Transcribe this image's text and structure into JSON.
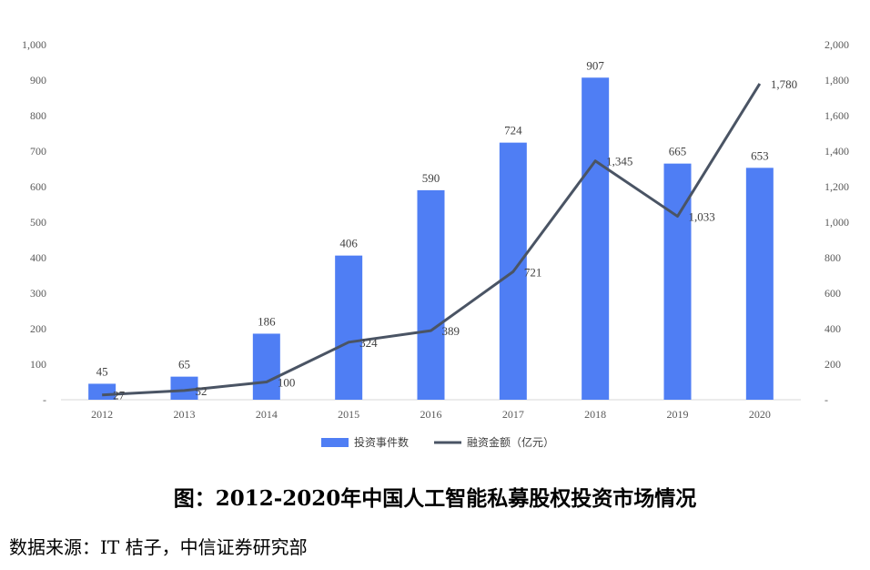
{
  "chart_data": {
    "type": "bar",
    "categories": [
      "2012",
      "2013",
      "2014",
      "2015",
      "2016",
      "2017",
      "2018",
      "2019",
      "2020"
    ],
    "series": [
      {
        "name": "投资事件数",
        "type": "bar",
        "axis": "left",
        "values": [
          45,
          65,
          186,
          406,
          590,
          724,
          907,
          665,
          653
        ],
        "labels": [
          "45",
          "65",
          "186",
          "406",
          "590",
          "724",
          "907",
          "665",
          "653"
        ],
        "color": "#4f7ef4"
      },
      {
        "name": "融资金额（亿元）",
        "type": "line",
        "axis": "right",
        "values": [
          27,
          52,
          100,
          324,
          389,
          721,
          1345,
          1033,
          1780
        ],
        "labels": [
          "27",
          "52",
          "100",
          "324",
          "389",
          "721",
          "1,345",
          "1,033",
          "1,780"
        ],
        "color": "#4a5464"
      }
    ],
    "y_left": {
      "lim": [
        0,
        1000
      ],
      "ticks": [
        0,
        100,
        200,
        300,
        400,
        500,
        600,
        700,
        800,
        900,
        1000
      ],
      "tick_labels": [
        "-",
        "100",
        "200",
        "300",
        "400",
        "500",
        "600",
        "700",
        "800",
        "900",
        "1,000"
      ]
    },
    "y_right": {
      "lim": [
        0,
        2000
      ],
      "ticks": [
        0,
        200,
        400,
        600,
        800,
        1000,
        1200,
        1400,
        1600,
        1800,
        2000
      ],
      "tick_labels": [
        "-",
        "200",
        "400",
        "600",
        "800",
        "1,000",
        "1,200",
        "1,400",
        "1,600",
        "1,800",
        "2,000"
      ]
    },
    "grid": false,
    "legend": "bottom-center"
  },
  "caption": "图：2012-2020年中国人工智能私募股权投资市场情况",
  "source": "数据来源：IT 桔子，中信证券研究部"
}
